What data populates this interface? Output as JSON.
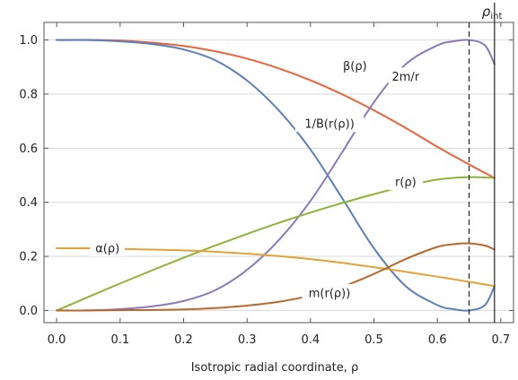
{
  "chart_data": {
    "type": "line",
    "title": "",
    "xlabel": "Isotropic radial coordinate, ρ",
    "ylabel": "",
    "xlim": [
      -0.02,
      0.72
    ],
    "ylim": [
      -0.045,
      1.065
    ],
    "grid": "horizontal",
    "x_ticks": [
      {
        "value": 0.0,
        "label": "0.0"
      },
      {
        "value": 0.1,
        "label": "0.1"
      },
      {
        "value": 0.2,
        "label": "0.2"
      },
      {
        "value": 0.3,
        "label": "0.3"
      },
      {
        "value": 0.4,
        "label": "0.4"
      },
      {
        "value": 0.5,
        "label": "0.5"
      },
      {
        "value": 0.6,
        "label": "0.6"
      },
      {
        "value": 0.7,
        "label": "0.7"
      }
    ],
    "y_ticks": [
      {
        "value": 0.0,
        "label": "0.0"
      },
      {
        "value": 0.2,
        "label": "0.2"
      },
      {
        "value": 0.4,
        "label": "0.4"
      },
      {
        "value": 0.6,
        "label": "0.6"
      },
      {
        "value": 0.8,
        "label": "0.8"
      },
      {
        "value": 1.0,
        "label": "1.0"
      }
    ],
    "vlines": [
      {
        "x": 0.65,
        "style": "dashed",
        "label": ""
      },
      {
        "x": 0.69,
        "style": "solid",
        "label": "ρ",
        "subscript": "int"
      }
    ],
    "series": [
      {
        "name": "β(ρ)",
        "color": "#e8643a",
        "label_x": 0.47,
        "label_y": 0.905,
        "x": [
          0.0,
          0.05,
          0.1,
          0.15,
          0.2,
          0.25,
          0.3,
          0.35,
          0.4,
          0.45,
          0.5,
          0.55,
          0.6,
          0.65,
          0.69
        ],
        "y": [
          1.0,
          1.0,
          0.998,
          0.99,
          0.978,
          0.958,
          0.931,
          0.895,
          0.851,
          0.799,
          0.74,
          0.675,
          0.605,
          0.54,
          0.49
        ]
      },
      {
        "name": "1/B(r(ρ))",
        "color": "#5b7fba",
        "label_x": 0.43,
        "label_y": 0.69,
        "x": [
          0.0,
          0.05,
          0.1,
          0.15,
          0.2,
          0.25,
          0.3,
          0.35,
          0.4,
          0.45,
          0.5,
          0.55,
          0.6,
          0.625,
          0.65,
          0.675,
          0.69
        ],
        "y": [
          1.0,
          1.0,
          0.995,
          0.985,
          0.965,
          0.925,
          0.85,
          0.74,
          0.595,
          0.415,
          0.23,
          0.09,
          0.02,
          0.005,
          0.0,
          0.02,
          0.09
        ]
      },
      {
        "name": "2m/r",
        "color": "#8b79b9",
        "label_x": 0.55,
        "label_y": 0.865,
        "x": [
          0.0,
          0.05,
          0.1,
          0.15,
          0.2,
          0.25,
          0.3,
          0.35,
          0.4,
          0.45,
          0.5,
          0.55,
          0.6,
          0.625,
          0.65,
          0.675,
          0.69
        ],
        "y": [
          0.0,
          0.0,
          0.005,
          0.015,
          0.035,
          0.075,
          0.15,
          0.26,
          0.405,
          0.585,
          0.77,
          0.91,
          0.98,
          0.995,
          1.0,
          0.98,
          0.91
        ]
      },
      {
        "name": "r(ρ)",
        "color": "#8fb339",
        "label_x": 0.55,
        "label_y": 0.475,
        "x": [
          0.0,
          0.05,
          0.1,
          0.15,
          0.2,
          0.25,
          0.3,
          0.35,
          0.4,
          0.45,
          0.5,
          0.55,
          0.6,
          0.65,
          0.69
        ],
        "y": [
          0.0,
          0.05,
          0.1,
          0.148,
          0.195,
          0.24,
          0.283,
          0.324,
          0.362,
          0.397,
          0.43,
          0.46,
          0.484,
          0.493,
          0.49
        ]
      },
      {
        "name": "α(ρ)",
        "color": "#e2a23a",
        "label_x": 0.08,
        "label_y": 0.23,
        "x": [
          0.0,
          0.05,
          0.1,
          0.15,
          0.2,
          0.25,
          0.3,
          0.35,
          0.4,
          0.45,
          0.5,
          0.55,
          0.6,
          0.65,
          0.69
        ],
        "y": [
          0.23,
          0.23,
          0.228,
          0.225,
          0.222,
          0.217,
          0.21,
          0.201,
          0.19,
          0.176,
          0.16,
          0.143,
          0.125,
          0.106,
          0.09
        ]
      },
      {
        "name": "m(r(ρ))",
        "color": "#b8682c",
        "label_x": 0.43,
        "label_y": 0.065,
        "x": [
          0.0,
          0.05,
          0.1,
          0.15,
          0.2,
          0.25,
          0.3,
          0.35,
          0.4,
          0.45,
          0.5,
          0.55,
          0.6,
          0.625,
          0.65,
          0.675,
          0.69
        ],
        "y": [
          0.0,
          0.0,
          0.001,
          0.002,
          0.004,
          0.009,
          0.018,
          0.032,
          0.055,
          0.088,
          0.135,
          0.19,
          0.235,
          0.245,
          0.248,
          0.24,
          0.225
        ]
      }
    ]
  }
}
